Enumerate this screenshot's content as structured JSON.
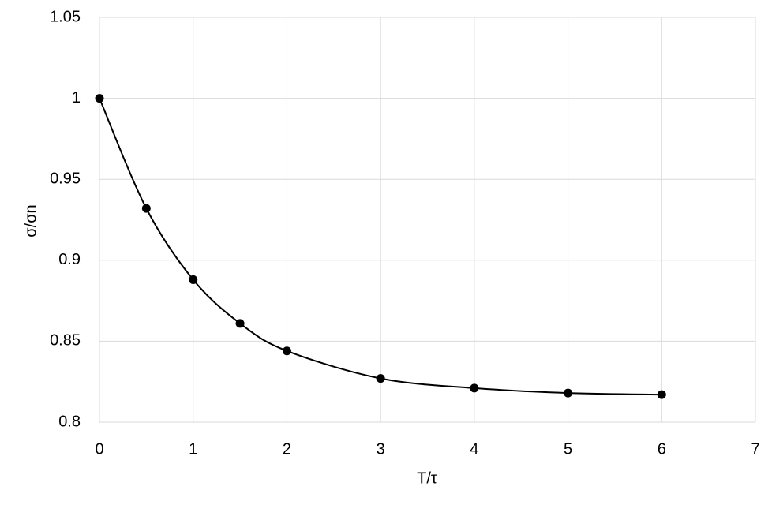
{
  "chart_data": {
    "type": "scatter",
    "x_label": "T/τ",
    "y_label": "σ/σn",
    "x": [
      0,
      0.5,
      1,
      1.5,
      2,
      3,
      4,
      5,
      6
    ],
    "values": [
      1.0,
      0.932,
      0.888,
      0.861,
      0.844,
      0.827,
      0.821,
      0.818,
      0.817
    ],
    "color": "#000000",
    "smooth": true,
    "grid": true,
    "xlim": [
      0,
      7
    ],
    "xticks": [
      0,
      1,
      2,
      3,
      4,
      5,
      6,
      7
    ],
    "ylim": [
      0.8,
      1.05
    ],
    "yticks": [
      0.8,
      0.85,
      0.9,
      0.95,
      1,
      1.05
    ]
  }
}
